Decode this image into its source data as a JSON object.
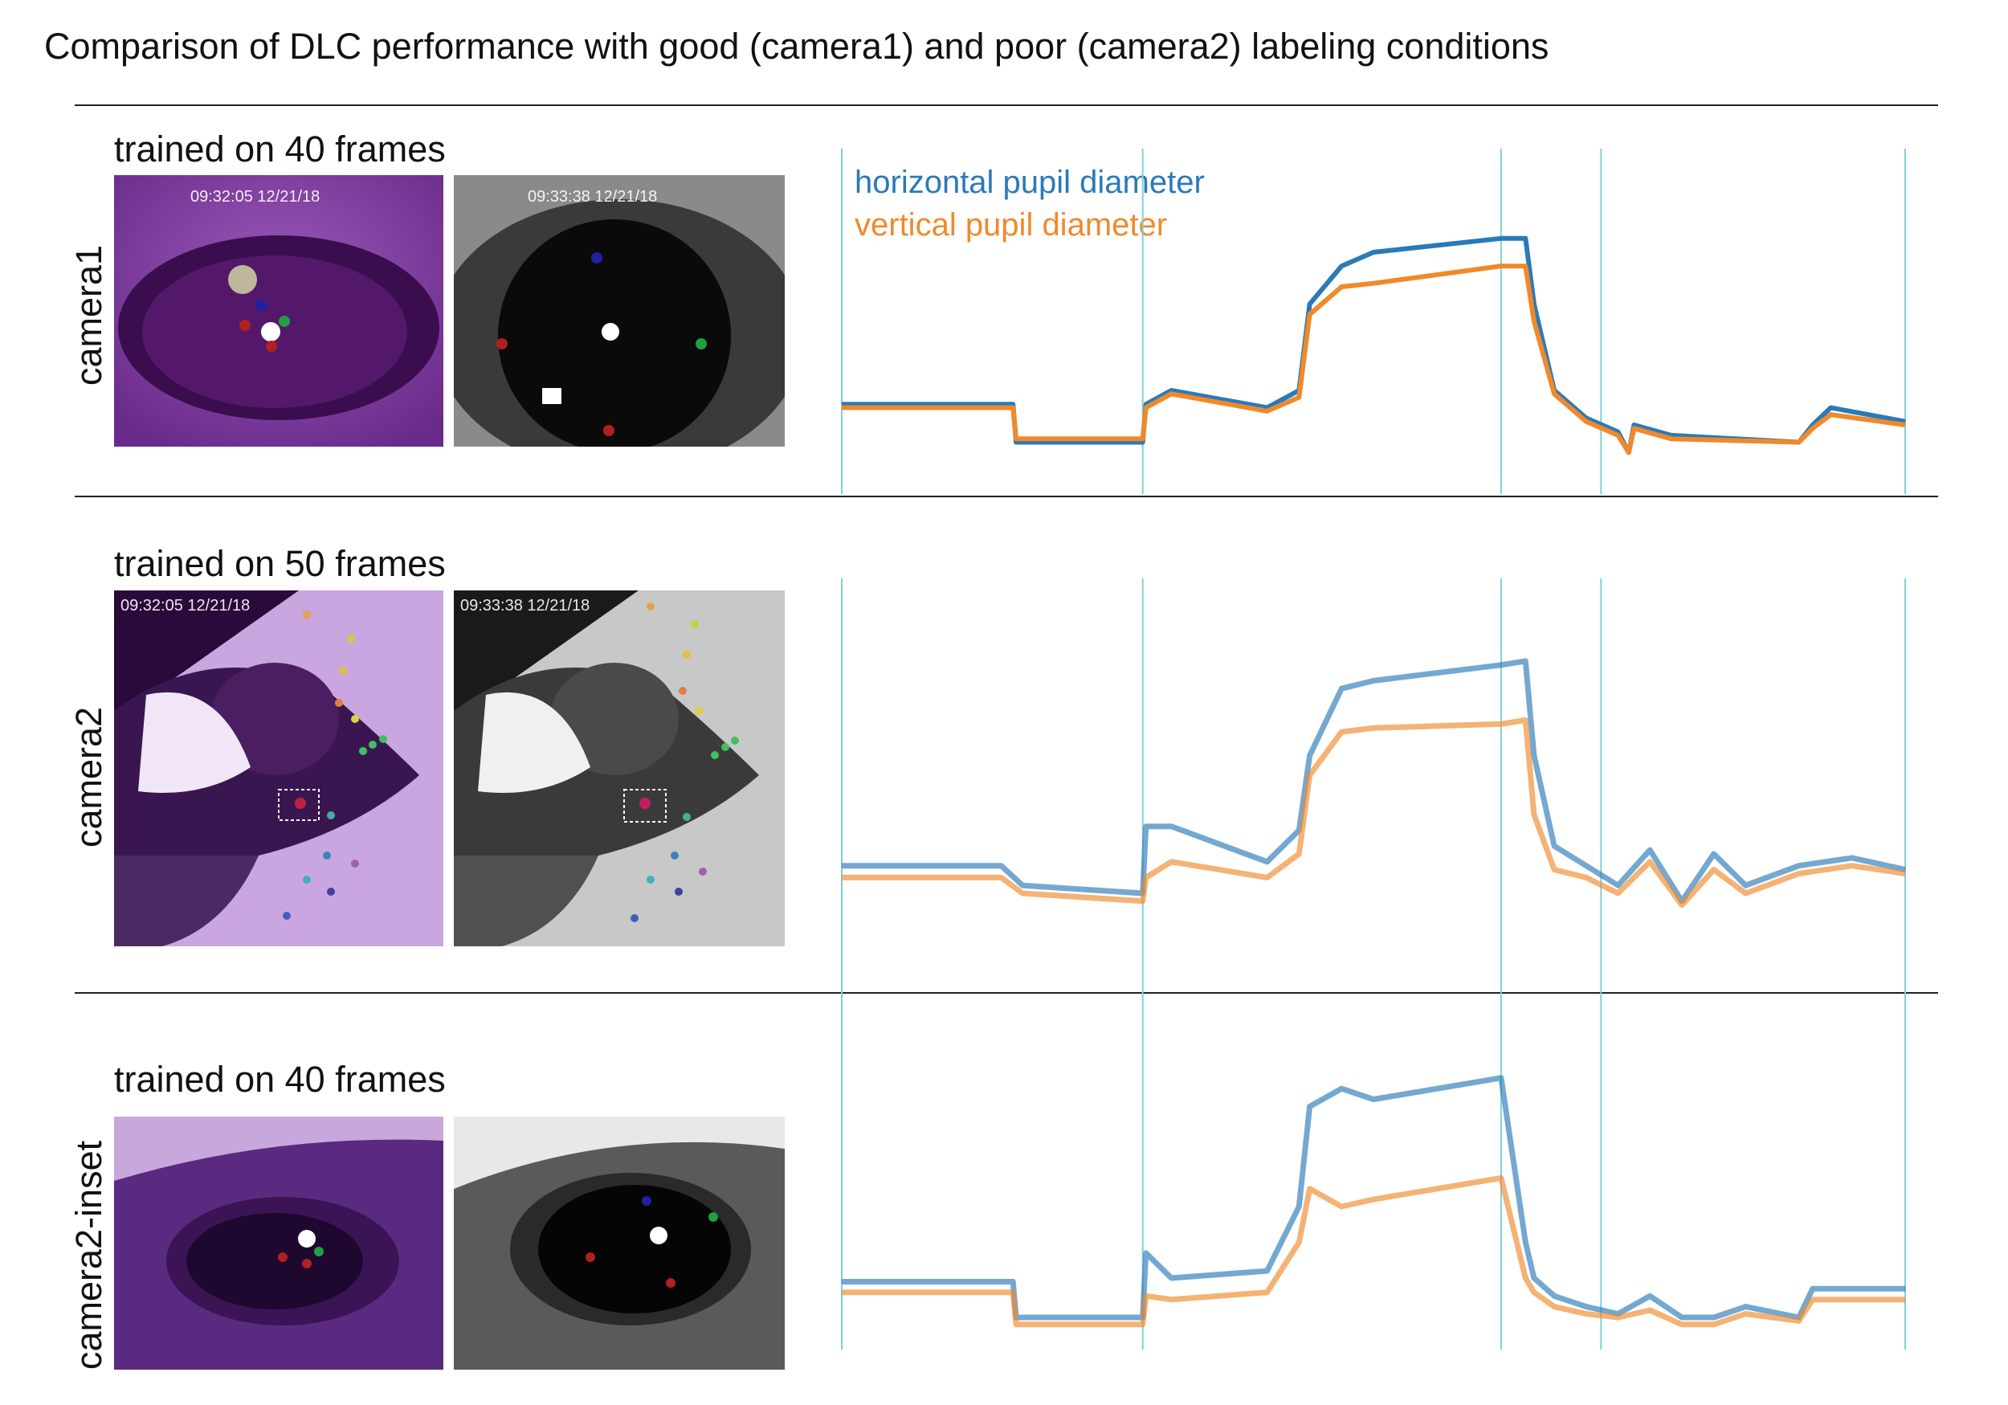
{
  "figure": {
    "title": "Comparison of DLC performance with good (camera1) and poor (camera2) labeling conditions",
    "legend": [
      {
        "label": "horizontal pupil diameter",
        "color": "#2a7ab8"
      },
      {
        "label": "vertical pupil diameter",
        "color": "#f0892b"
      }
    ],
    "stimulus_line_color": "#7fcfdc",
    "rows": [
      {
        "label": "camera1",
        "training_text": "trained on 40 frames",
        "stamps": [
          "09:32:05  12/21/18",
          "09:33:38  12/21/18"
        ]
      },
      {
        "label": "camera2",
        "training_text": "trained on 50 frames",
        "stamps": [
          "09:32:05  12/21/18",
          "09:33:38  12/21/18"
        ]
      },
      {
        "label": "camera2-inset",
        "training_text": "trained on 40 frames",
        "stamps": []
      }
    ]
  },
  "chart_data": [
    {
      "type": "line",
      "row": "camera1",
      "x": [
        0,
        0.15,
        0.161,
        0.164,
        0.283,
        0.286,
        0.31,
        0.4,
        0.43,
        0.44,
        0.47,
        0.5,
        0.62,
        0.643,
        0.651,
        0.67,
        0.7,
        0.73,
        0.74,
        0.745,
        0.78,
        0.9,
        0.913,
        0.93,
        1.0
      ],
      "series": [
        {
          "name": "horizontal pupil diameter",
          "values": [
            0.26,
            0.26,
            0.26,
            0.15,
            0.15,
            0.26,
            0.3,
            0.25,
            0.3,
            0.55,
            0.66,
            0.7,
            0.74,
            0.74,
            0.55,
            0.3,
            0.22,
            0.18,
            0.12,
            0.2,
            0.17,
            0.15,
            0.2,
            0.25,
            0.21
          ]
        },
        {
          "name": "vertical pupil diameter",
          "values": [
            0.25,
            0.25,
            0.25,
            0.16,
            0.16,
            0.25,
            0.29,
            0.24,
            0.28,
            0.52,
            0.6,
            0.61,
            0.66,
            0.66,
            0.5,
            0.29,
            0.21,
            0.17,
            0.12,
            0.19,
            0.16,
            0.15,
            0.19,
            0.23,
            0.2
          ]
        }
      ]
    },
    {
      "type": "line",
      "row": "camera2",
      "x": [
        0,
        0.15,
        0.17,
        0.283,
        0.286,
        0.31,
        0.4,
        0.43,
        0.44,
        0.47,
        0.5,
        0.62,
        0.643,
        0.651,
        0.67,
        0.7,
        0.73,
        0.76,
        0.79,
        0.82,
        0.85,
        0.9,
        0.95,
        1.0
      ],
      "series": [
        {
          "name": "horizontal pupil diameter",
          "values": [
            0.27,
            0.27,
            0.22,
            0.2,
            0.37,
            0.37,
            0.28,
            0.36,
            0.55,
            0.72,
            0.74,
            0.78,
            0.79,
            0.55,
            0.32,
            0.27,
            0.22,
            0.31,
            0.18,
            0.3,
            0.22,
            0.27,
            0.29,
            0.26
          ]
        },
        {
          "name": "vertical pupil diameter",
          "values": [
            0.24,
            0.24,
            0.2,
            0.18,
            0.24,
            0.28,
            0.24,
            0.3,
            0.5,
            0.61,
            0.62,
            0.63,
            0.64,
            0.4,
            0.26,
            0.24,
            0.2,
            0.28,
            0.17,
            0.26,
            0.2,
            0.25,
            0.27,
            0.25
          ]
        }
      ]
    },
    {
      "type": "line",
      "row": "camera2-inset",
      "x": [
        0,
        0.15,
        0.161,
        0.164,
        0.283,
        0.286,
        0.31,
        0.4,
        0.43,
        0.44,
        0.47,
        0.5,
        0.62,
        0.643,
        0.651,
        0.67,
        0.7,
        0.73,
        0.76,
        0.79,
        0.82,
        0.85,
        0.9,
        0.913,
        0.93,
        1.0
      ],
      "series": [
        {
          "name": "horizontal pupil diameter",
          "values": [
            0.19,
            0.19,
            0.19,
            0.09,
            0.09,
            0.27,
            0.2,
            0.22,
            0.4,
            0.68,
            0.73,
            0.7,
            0.76,
            0.3,
            0.2,
            0.15,
            0.12,
            0.1,
            0.15,
            0.09,
            0.09,
            0.12,
            0.09,
            0.17,
            0.17,
            0.17
          ]
        },
        {
          "name": "vertical pupil diameter",
          "values": [
            0.16,
            0.16,
            0.16,
            0.07,
            0.07,
            0.15,
            0.14,
            0.16,
            0.3,
            0.45,
            0.4,
            0.42,
            0.48,
            0.2,
            0.16,
            0.12,
            0.1,
            0.09,
            0.11,
            0.07,
            0.07,
            0.1,
            0.08,
            0.14,
            0.14,
            0.14
          ]
        }
      ]
    }
  ]
}
